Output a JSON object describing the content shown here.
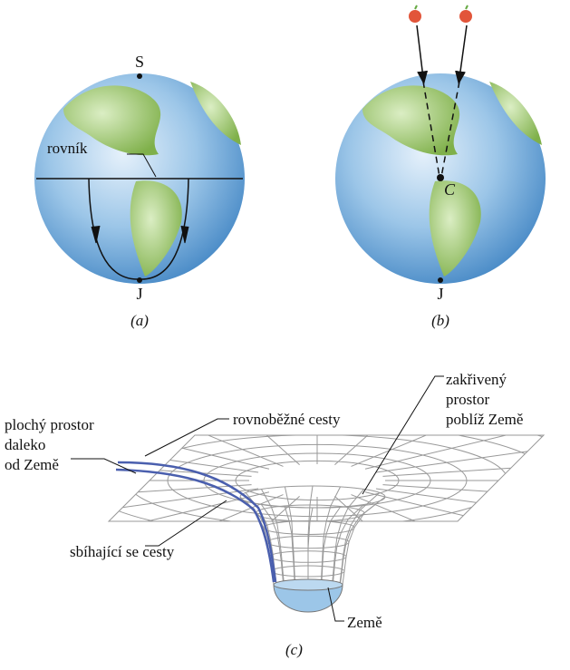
{
  "panel_a": {
    "north": "S",
    "equator": "rovník",
    "south": "J",
    "caption": "(a)"
  },
  "panel_b": {
    "center": "C",
    "south": "J",
    "caption": "(b)"
  },
  "panel_c": {
    "curved_space": [
      "zakřivený",
      "prostor",
      "poblíž Země"
    ],
    "flat_space": [
      "plochý prostor",
      "daleko",
      "od Země"
    ],
    "parallel_paths": "rovnoběžné cesty",
    "converging_paths": "sbíhající se cesty",
    "earth": "Země",
    "caption": "(c)"
  }
}
